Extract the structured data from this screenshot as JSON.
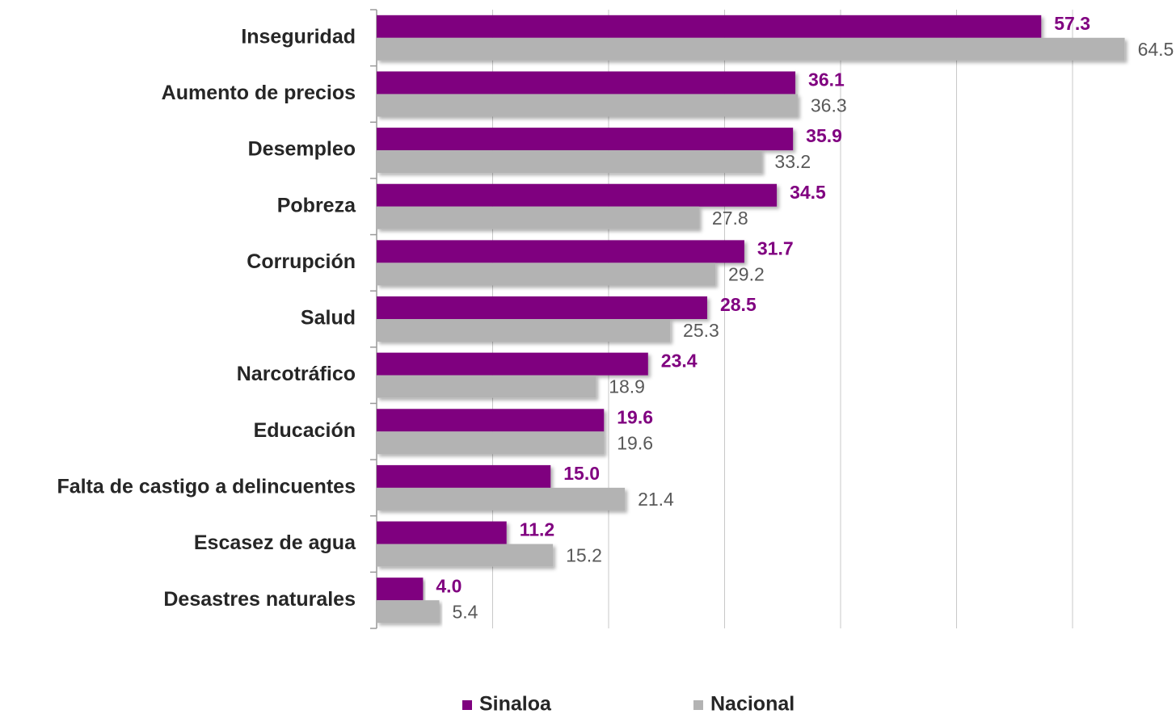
{
  "chart_data": {
    "type": "hbar",
    "categories": [
      "Inseguridad",
      "Aumento de precios",
      "Desempleo",
      "Pobreza",
      "Corrupción",
      "Salud",
      "Narcotráfico",
      "Educación",
      "Falta de castigo a delincuentes",
      "Escasez de agua",
      "Desastres naturales"
    ],
    "series": [
      {
        "name": "Sinaloa",
        "color": "#7f007f",
        "label_color": "#800080",
        "values": [
          57.3,
          36.1,
          35.9,
          34.5,
          31.7,
          28.5,
          23.4,
          19.6,
          15.0,
          11.2,
          4.0
        ],
        "value_labels": [
          "57.3",
          "36.1",
          "35.9",
          "34.5",
          "31.7",
          "28.5",
          "23.4",
          "19.6",
          "15.0",
          "11.2",
          "4.0"
        ]
      },
      {
        "name": "Nacional",
        "color": "#b3b3b3",
        "label_color": "#595959",
        "values": [
          64.5,
          36.3,
          33.2,
          27.8,
          29.2,
          25.3,
          18.9,
          19.6,
          21.4,
          15.2,
          5.4
        ],
        "value_labels": [
          "64.5",
          "36.3",
          "33.2",
          "27.8",
          "29.2",
          "25.3",
          "18.9",
          "19.6",
          "21.4",
          "15.2",
          "5.4"
        ]
      }
    ],
    "xlim": [
      0,
      70
    ],
    "xticks": [
      0,
      10,
      20,
      30,
      40,
      50,
      60
    ],
    "grid": true,
    "legend": "bottom"
  }
}
